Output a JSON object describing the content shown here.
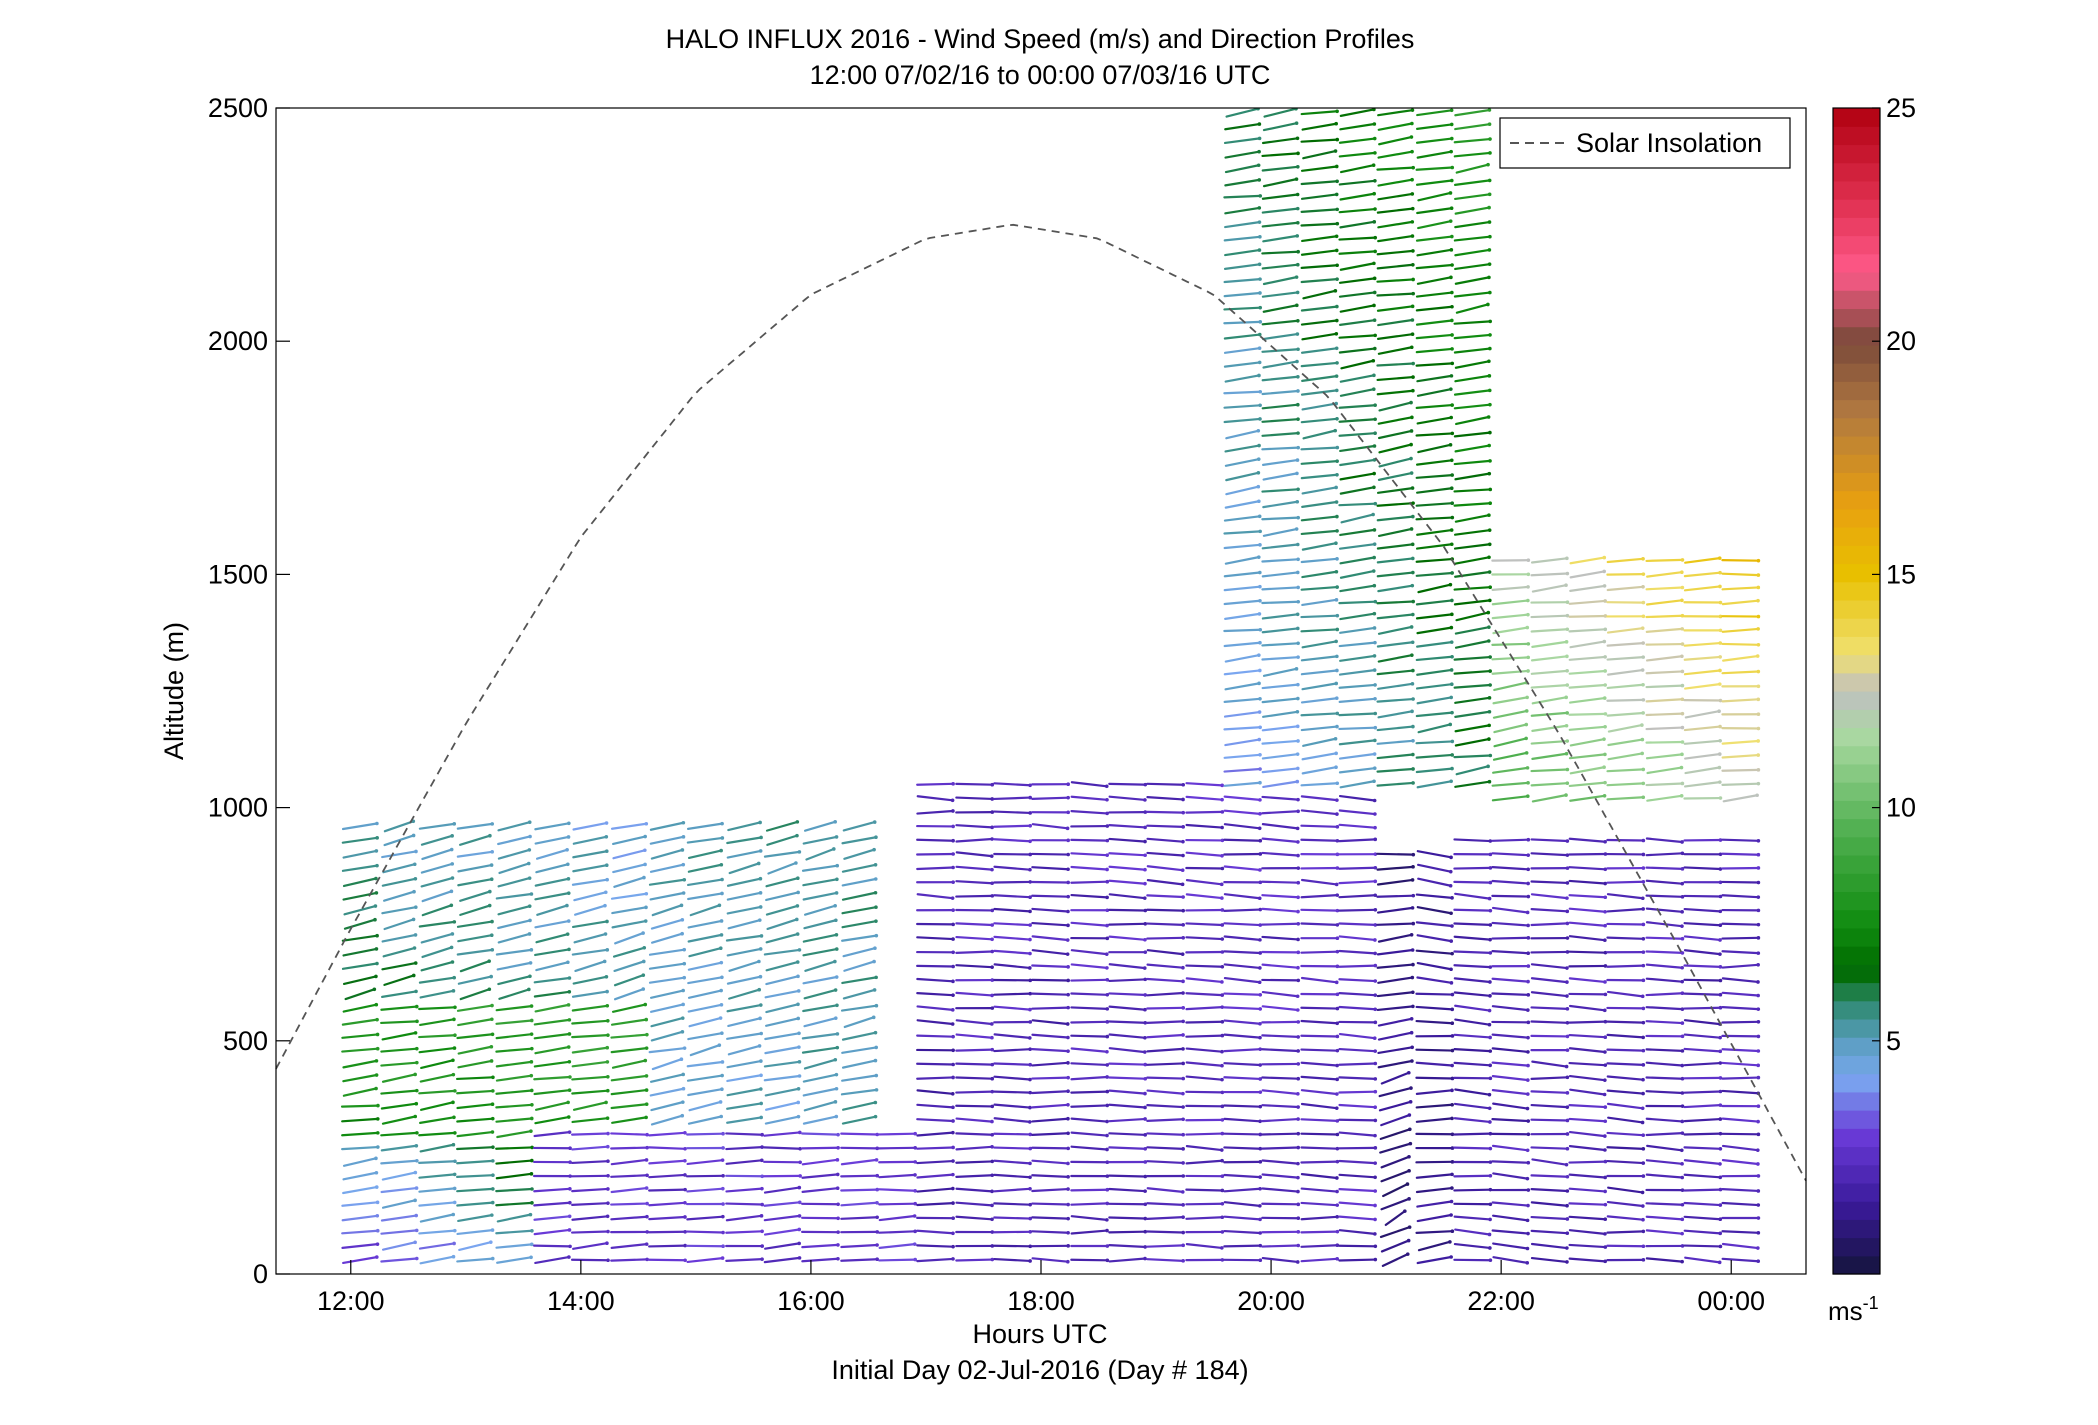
{
  "figure": {
    "title_line1": "HALO INFLUX 2016 - Wind Speed (m/s) and Direction Profiles",
    "title_line2": "12:00 07/02/16 to 00:00 07/03/16  UTC",
    "xlabel": "Hours UTC",
    "xlabel_sub": "Initial Day 02-Jul-2016 (Day # 184)",
    "ylabel": "Altitude (m)",
    "colorbar_unit": "ms",
    "colorbar_unit_exp": "-1"
  },
  "chart_data": {
    "type": "scatter",
    "title": "HALO INFLUX 2016 - Wind Speed (m/s) and Direction Profiles",
    "subtitle": "12:00 07/02/16 to 00:00 07/03/16  UTC",
    "xlabel": "Hours UTC",
    "ylabel": "Altitude (m)",
    "x_ticks": [
      {
        "hour": 12,
        "label": "12:00"
      },
      {
        "hour": 14,
        "label": "14:00"
      },
      {
        "hour": 16,
        "label": "16:00"
      },
      {
        "hour": 18,
        "label": "18:00"
      },
      {
        "hour": 20,
        "label": "20:00"
      },
      {
        "hour": 22,
        "label": "22:00"
      },
      {
        "hour": 24,
        "label": "00:00"
      }
    ],
    "xlim": [
      11.35,
      24.65
    ],
    "ylim": [
      0,
      2500
    ],
    "y_ticks": [
      0,
      500,
      1000,
      1500,
      2000,
      2500
    ],
    "colorbar": {
      "range": [
        0,
        25
      ],
      "ticks": [
        5,
        10,
        15,
        20,
        25
      ],
      "colormap": [
        {
          "v": 0,
          "c": "#14143c"
        },
        {
          "v": 1.5,
          "c": "#3a1a9a"
        },
        {
          "v": 3.0,
          "c": "#6a3ad8"
        },
        {
          "v": 4.2,
          "c": "#7aa8f0"
        },
        {
          "v": 5.0,
          "c": "#5a9ec0"
        },
        {
          "v": 5.8,
          "c": "#2f8a70"
        },
        {
          "v": 6.5,
          "c": "#006a00"
        },
        {
          "v": 7.5,
          "c": "#108c10"
        },
        {
          "v": 9.5,
          "c": "#50b050"
        },
        {
          "v": 11.5,
          "c": "#a8d8a0"
        },
        {
          "v": 12.5,
          "c": "#c0c0c0"
        },
        {
          "v": 13.3,
          "c": "#f0e070"
        },
        {
          "v": 15.0,
          "c": "#e8c000"
        },
        {
          "v": 16.5,
          "c": "#e8a010"
        },
        {
          "v": 18.5,
          "c": "#b07840"
        },
        {
          "v": 20.0,
          "c": "#7a4a3a"
        },
        {
          "v": 21.5,
          "c": "#ff5a8a"
        },
        {
          "v": 23.0,
          "c": "#e03050"
        },
        {
          "v": 25.0,
          "c": "#b00010"
        }
      ]
    },
    "solar_insolation": {
      "name": "Solar Insolation",
      "legend_position": "top-right",
      "peak_hour": 17.75,
      "peak_altitude": 2250,
      "points": [
        {
          "hour": 11.35,
          "alt": 440
        },
        {
          "hour": 12.0,
          "alt": 740
        },
        {
          "hour": 13.0,
          "alt": 1180
        },
        {
          "hour": 14.0,
          "alt": 1580
        },
        {
          "hour": 15.0,
          "alt": 1890
        },
        {
          "hour": 16.0,
          "alt": 2100
        },
        {
          "hour": 17.0,
          "alt": 2220
        },
        {
          "hour": 17.75,
          "alt": 2250
        },
        {
          "hour": 18.5,
          "alt": 2220
        },
        {
          "hour": 19.5,
          "alt": 2100
        },
        {
          "hour": 20.5,
          "alt": 1880
        },
        {
          "hour": 21.5,
          "alt": 1560
        },
        {
          "hour": 22.5,
          "alt": 1160
        },
        {
          "hour": 23.5,
          "alt": 720
        },
        {
          "hour": 24.65,
          "alt": 200
        }
      ]
    },
    "wind_profiles": {
      "profile_hours": [
        12.08,
        12.42,
        12.75,
        13.08,
        13.42,
        13.75,
        14.08,
        14.42,
        14.75,
        15.08,
        15.42,
        15.75,
        16.08,
        16.42,
        16.75,
        17.08,
        17.42,
        17.75,
        18.08,
        18.42,
        18.75,
        19.08,
        19.42,
        19.75,
        20.08,
        20.42,
        20.75,
        21.08,
        21.42,
        21.75,
        22.08,
        22.42,
        22.75,
        23.08,
        23.42,
        23.75,
        24.08
      ],
      "levels_m": [
        30,
        3000,
        30
      ],
      "segments": [
        {
          "h0": 12.0,
          "h1": 13.5,
          "a0": 0,
          "a1": 300,
          "s0": 2.5,
          "s1": 7.0,
          "d0": 70,
          "d1": 75
        },
        {
          "h0": 12.0,
          "h1": 14.8,
          "a0": 300,
          "a1": 600,
          "s0": 7.5,
          "s1": 8.5,
          "d0": 75,
          "d1": 70
        },
        {
          "h0": 12.0,
          "h1": 14.5,
          "a0": 600,
          "a1": 960,
          "s0": 6.0,
          "s1": 4.5,
          "d0": 65,
          "d1": 60
        },
        {
          "h0": 14.5,
          "h1": 16.5,
          "a0": 300,
          "a1": 960,
          "s0": 4.5,
          "s1": 5.5,
          "d0": 65,
          "d1": 60
        },
        {
          "h0": 13.5,
          "h1": 17.0,
          "a0": 0,
          "a1": 300,
          "s0": 2.5,
          "s1": 2.8,
          "d0": 80,
          "d1": 85
        },
        {
          "h0": 17.0,
          "h1": 21.0,
          "a0": 0,
          "a1": 1050,
          "s0": 2.0,
          "s1": 2.5,
          "d0": 90,
          "d1": 95
        },
        {
          "h0": 21.0,
          "h1": 21.5,
          "a0": 0,
          "a1": 900,
          "s0": 1.0,
          "s1": 1.5,
          "d0": 30,
          "d1": 120
        },
        {
          "h0": 21.5,
          "h1": 24.1,
          "a0": 0,
          "a1": 950,
          "s0": 2.0,
          "s1": 2.3,
          "d0": 100,
          "d1": 90
        },
        {
          "h0": 19.7,
          "h1": 21.8,
          "a0": 1050,
          "a1": 2500,
          "s0": 4.0,
          "s1": 8.0,
          "d0": 75,
          "d1": 70
        },
        {
          "h0": 21.9,
          "h1": 24.1,
          "a0": 1000,
          "a1": 1550,
          "s0": 9.0,
          "s1": 15.0,
          "d0": 70,
          "d1": 85
        }
      ]
    }
  }
}
